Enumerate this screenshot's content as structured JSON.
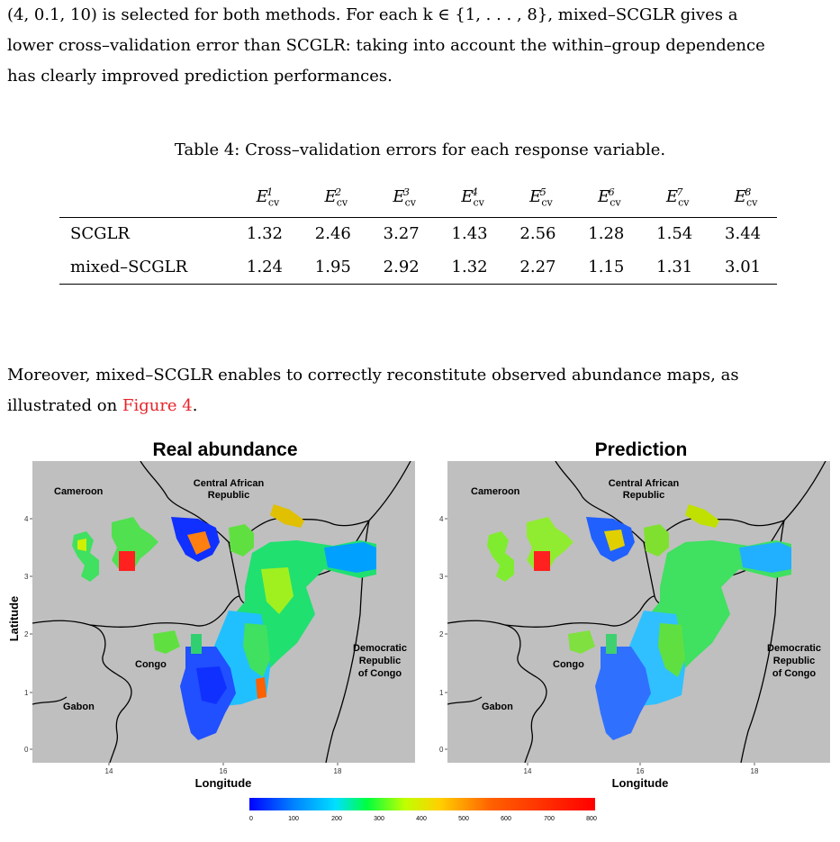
{
  "paragraph1": {
    "line1": "(4, 0.1, 10) is selected for both methods. For each k ∈ {1, . . . , 8}, mixed–SCGLR gives a",
    "line2": "lower cross–validation error than SCGLR: taking into account the within–group dependence",
    "line3": "has clearly improved prediction performances."
  },
  "table": {
    "caption": "Table 4: Cross–validation errors for each response variable.",
    "header_symbol": "E",
    "header_sub": "cv",
    "header_sups": [
      "1",
      "2",
      "3",
      "4",
      "5",
      "6",
      "7",
      "8"
    ],
    "rows": [
      {
        "label": "SCGLR",
        "values": [
          "1.32",
          "2.46",
          "3.27",
          "1.43",
          "2.56",
          "1.28",
          "1.54",
          "3.44"
        ]
      },
      {
        "label": "mixed–SCGLR",
        "values": [
          "1.24",
          "1.95",
          "2.92",
          "1.32",
          "2.27",
          "1.15",
          "1.31",
          "3.01"
        ]
      }
    ]
  },
  "paragraph2": {
    "line1": "Moreover, mixed–SCGLR enables to correctly reconstitute observed abundance maps, as",
    "line2_prefix": "illustrated on ",
    "line2_link": "Figure 4",
    "line2_suffix": "."
  },
  "figure": {
    "left_title": "Real abundance",
    "right_title": "Prediction",
    "ylabel": "Latitude",
    "xlabel": "Longitude",
    "y_ticks": [
      "0",
      "1",
      "2",
      "3",
      "4"
    ],
    "x_ticks": [
      "14",
      "16",
      "18"
    ],
    "regions": {
      "cameroon": "Cameroon",
      "car_line1": "Central African",
      "car_line2": "Republic",
      "congo": "Congo",
      "gabon": "Gabon",
      "drc_line1": "Democratic",
      "drc_line2": "Republic",
      "drc_line3": "of Congo"
    },
    "colorbar_ticks": [
      "0",
      "100",
      "200",
      "300",
      "400",
      "500",
      "600",
      "700",
      "800"
    ],
    "map_background_color": "#bfbfbf"
  }
}
